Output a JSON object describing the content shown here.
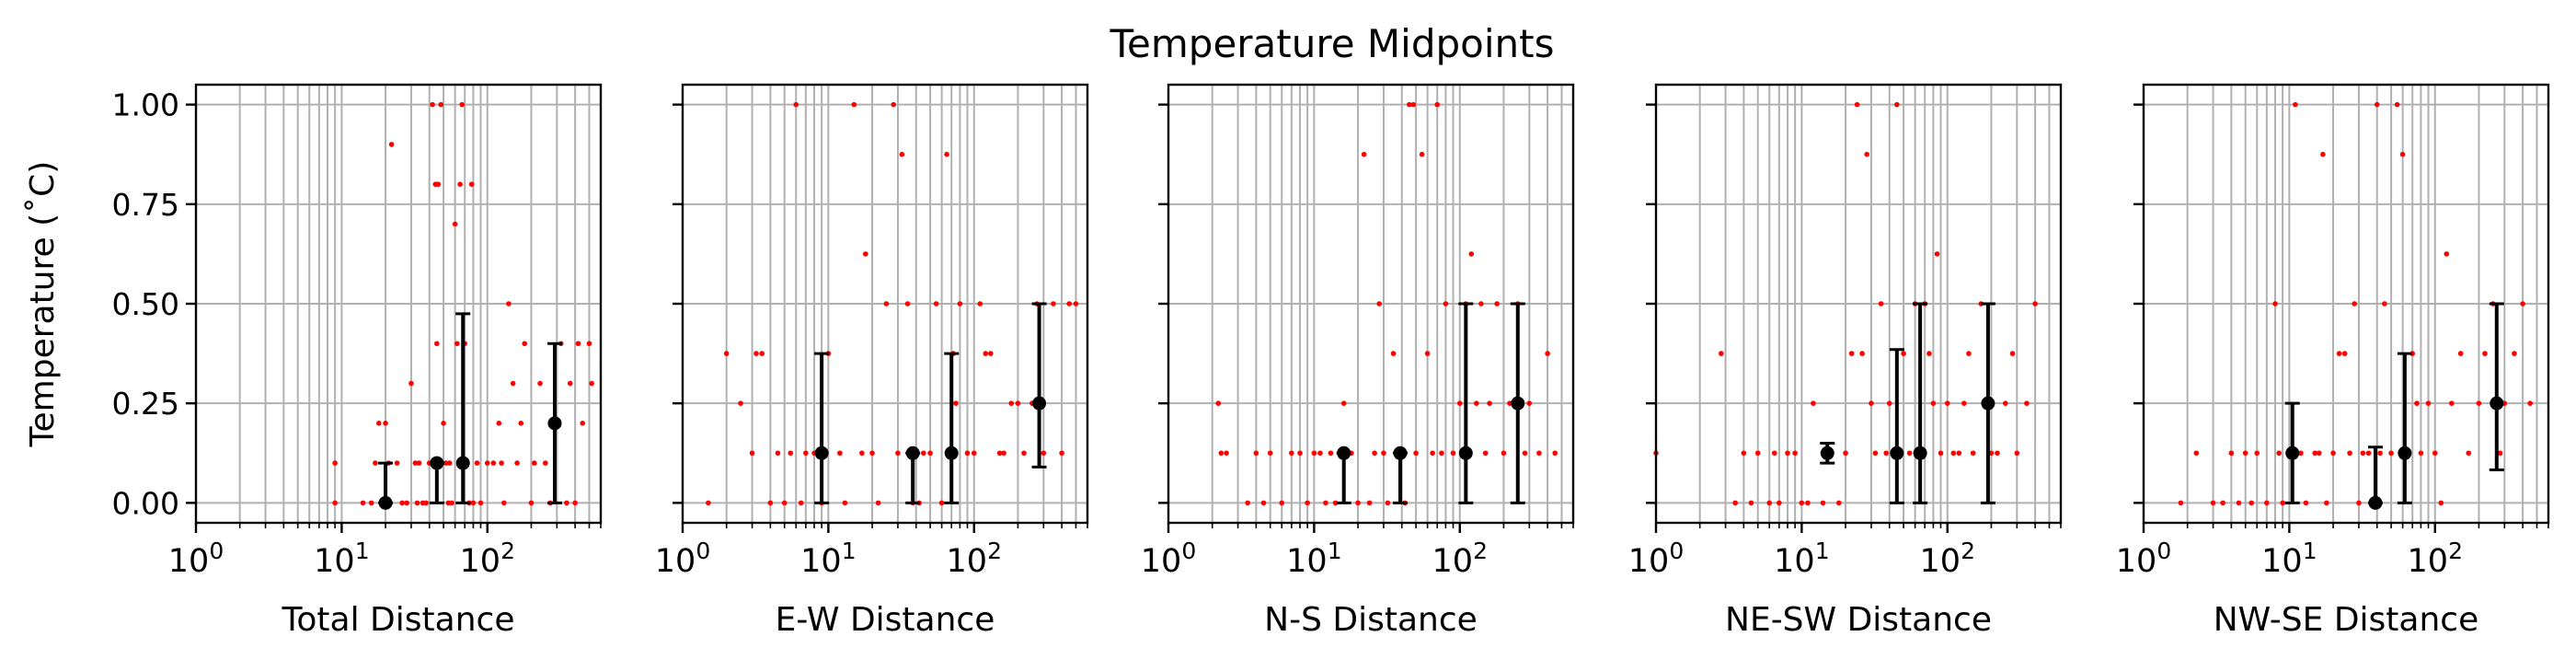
{
  "figure": {
    "title": "Temperature Midpoints",
    "ylabel": "Temperature (˚C)"
  },
  "colors": {
    "scatter": "#ff0000",
    "errorbar": "#000000",
    "grid": "#b0b0b0",
    "axes": "#000000"
  },
  "chart_data": [
    {
      "type": "scatter",
      "xlabel": "Total Distance",
      "xscale": "log",
      "xlim": [
        1,
        600
      ],
      "ylim": [
        -0.05,
        1.05
      ],
      "xticks": [
        "10^0",
        "10^1",
        "10^2"
      ],
      "yticks": [
        "0.00",
        "0.25",
        "0.50",
        "0.75",
        "1.00"
      ],
      "grid": "both, major and minor on x",
      "points": {
        "x": [
          9,
          9,
          14,
          16,
          17,
          18,
          19,
          20,
          20,
          21,
          22,
          24,
          26,
          28,
          30,
          32,
          33,
          34,
          36,
          38,
          40,
          42,
          44,
          45,
          46,
          47,
          48,
          49,
          50,
          52,
          54,
          55,
          57,
          60,
          62,
          65,
          67,
          70,
          72,
          75,
          78,
          80,
          85,
          90,
          100,
          110,
          120,
          125,
          130,
          140,
          150,
          160,
          170,
          180,
          200,
          210,
          230,
          250,
          270,
          280,
          300,
          320,
          350,
          370,
          400,
          420,
          450,
          500,
          520
        ],
        "y": [
          0.0,
          0.1,
          0.0,
          0.0,
          0.1,
          0.2,
          0.0,
          0.2,
          0.0,
          0.1,
          0.9,
          0.1,
          0.0,
          0.0,
          0.3,
          0.1,
          0.0,
          0.1,
          0.0,
          0.0,
          0.1,
          1.0,
          0.8,
          0.4,
          0.8,
          0.1,
          1.0,
          0.1,
          0.2,
          0.1,
          0.0,
          0.1,
          0.0,
          0.7,
          0.4,
          0.8,
          1.0,
          0.4,
          0.1,
          0.0,
          0.8,
          0.0,
          0.1,
          0.0,
          0.1,
          0.1,
          0.2,
          0.1,
          0.0,
          0.5,
          0.3,
          0.1,
          0.2,
          0.4,
          0.0,
          0.1,
          0.3,
          0.1,
          0.0,
          0.2,
          0.2,
          0.4,
          0.0,
          0.3,
          0.0,
          0.4,
          0.2,
          0.4,
          0.3
        ]
      },
      "errorbars": [
        {
          "x": 20,
          "y": 0.0,
          "low": 0.0,
          "high": 0.1
        },
        {
          "x": 45,
          "y": 0.1,
          "low": 0.0,
          "high": 0.1
        },
        {
          "x": 68,
          "y": 0.1,
          "low": 0.0,
          "high": 0.475
        },
        {
          "x": 290,
          "y": 0.2,
          "low": 0.0,
          "high": 0.4
        }
      ]
    },
    {
      "type": "scatter",
      "xlabel": "E-W Distance",
      "xscale": "log",
      "xlim": [
        1,
        600
      ],
      "ylim": [
        -0.05,
        1.05
      ],
      "xticks": [
        "10^0",
        "10^1",
        "10^2"
      ],
      "yticks": [
        "0.00",
        "0.25",
        "0.50",
        "0.75",
        "1.00"
      ],
      "grid": "both, major and minor on x",
      "points": {
        "x": [
          1.5,
          2,
          2.5,
          3,
          3.2,
          3.5,
          4,
          4.5,
          5,
          5.5,
          6,
          6.5,
          7,
          8,
          9,
          10,
          12,
          13,
          15,
          17,
          18,
          20,
          22,
          25,
          28,
          30,
          32,
          35,
          38,
          40,
          42,
          45,
          50,
          55,
          60,
          65,
          70,
          72,
          75,
          80,
          90,
          100,
          110,
          120,
          130,
          150,
          160,
          180,
          200,
          220,
          250,
          270,
          300,
          350,
          400,
          450,
          500
        ],
        "y": [
          0.0,
          0.375,
          0.25,
          0.125,
          0.375,
          0.375,
          0.0,
          0.125,
          0.0,
          0.125,
          1.0,
          0.0,
          0.125,
          0.125,
          0.0,
          0.375,
          0.125,
          0.0,
          1.0,
          0.125,
          0.625,
          0.125,
          0.0,
          0.5,
          1.0,
          0.125,
          0.875,
          0.5,
          0.0,
          0.125,
          0.0,
          0.125,
          0.125,
          0.5,
          0.0,
          0.875,
          0.125,
          0.375,
          0.25,
          0.5,
          0.125,
          0.125,
          0.5,
          0.375,
          0.375,
          0.125,
          0.125,
          0.25,
          0.25,
          0.125,
          0.25,
          0.5,
          0.125,
          0.5,
          0.125,
          0.5,
          0.5
        ]
      },
      "errorbars": [
        {
          "x": 9,
          "y": 0.125,
          "low": 0.0,
          "high": 0.375
        },
        {
          "x": 38,
          "y": 0.125,
          "low": 0.0,
          "high": 0.125
        },
        {
          "x": 70,
          "y": 0.125,
          "low": 0.0,
          "high": 0.375
        },
        {
          "x": 280,
          "y": 0.25,
          "low": 0.09,
          "high": 0.5
        }
      ]
    },
    {
      "type": "scatter",
      "xlabel": "N-S Distance",
      "xscale": "log",
      "xlim": [
        1,
        600
      ],
      "ylim": [
        -0.05,
        1.05
      ],
      "xticks": [
        "10^0",
        "10^1",
        "10^2"
      ],
      "yticks": [
        "0.00",
        "0.25",
        "0.50",
        "0.75",
        "1.00"
      ],
      "grid": "both, major and minor on x",
      "points": {
        "x": [
          2.2,
          2.3,
          2.5,
          3.5,
          4,
          4.5,
          5,
          6,
          7,
          8,
          9,
          10,
          11,
          12,
          13,
          14,
          15,
          16,
          18,
          20,
          22,
          24,
          26,
          28,
          30,
          32,
          35,
          38,
          40,
          42,
          45,
          48,
          50,
          55,
          60,
          65,
          70,
          75,
          80,
          90,
          100,
          110,
          120,
          130,
          140,
          150,
          160,
          180,
          200,
          220,
          250,
          280,
          300,
          350,
          400,
          450
        ],
        "y": [
          0.25,
          0.125,
          0.125,
          0.0,
          0.125,
          0.0,
          0.125,
          0.0,
          0.125,
          0.125,
          0.0,
          0.125,
          0.125,
          0.0,
          0.125,
          0.0,
          0.125,
          0.25,
          0.125,
          0.0,
          0.875,
          0.0,
          0.125,
          0.5,
          0.125,
          0.0,
          0.375,
          0.125,
          0.125,
          0.0,
          1.0,
          1.0,
          0.125,
          0.875,
          0.375,
          0.125,
          1.0,
          0.125,
          0.5,
          0.125,
          0.25,
          0.5,
          0.625,
          0.25,
          0.5,
          0.125,
          0.25,
          0.5,
          0.125,
          0.25,
          0.5,
          0.125,
          0.25,
          0.125,
          0.375,
          0.125
        ]
      },
      "errorbars": [
        {
          "x": 16,
          "y": 0.125,
          "low": 0.0,
          "high": 0.125
        },
        {
          "x": 39,
          "y": 0.125,
          "low": 0.0,
          "high": 0.125
        },
        {
          "x": 110,
          "y": 0.125,
          "low": 0.0,
          "high": 0.5
        },
        {
          "x": 250,
          "y": 0.25,
          "low": 0.0,
          "high": 0.5
        }
      ]
    },
    {
      "type": "scatter",
      "xlabel": "NE-SW Distance",
      "xscale": "log",
      "xlim": [
        1,
        600
      ],
      "ylim": [
        -0.05,
        1.05
      ],
      "xticks": [
        "10^0",
        "10^1",
        "10^2"
      ],
      "yticks": [
        "0.00",
        "0.25",
        "0.50",
        "0.75",
        "1.00"
      ],
      "grid": "both, major and minor on x",
      "points": {
        "x": [
          1,
          2.8,
          3.5,
          4,
          4.5,
          5,
          6,
          6.5,
          7,
          8,
          9,
          10,
          11,
          12,
          14,
          15,
          16,
          18,
          20,
          22,
          24,
          26,
          28,
          30,
          32,
          35,
          38,
          40,
          45,
          50,
          55,
          60,
          65,
          70,
          75,
          80,
          85,
          90,
          100,
          110,
          120,
          130,
          140,
          150,
          170,
          180,
          200,
          220,
          250,
          280,
          300,
          350,
          400
        ],
        "y": [
          0.125,
          0.375,
          0.0,
          0.125,
          0.0,
          0.125,
          0.0,
          0.125,
          0.0,
          0.125,
          0.125,
          0.0,
          0.0,
          0.25,
          0.0,
          0.125,
          0.125,
          0.0,
          0.125,
          0.375,
          1.0,
          0.375,
          0.875,
          0.25,
          0.125,
          0.5,
          0.125,
          0.25,
          1.0,
          0.375,
          0.125,
          0.5,
          0.125,
          0.5,
          0.375,
          0.25,
          0.625,
          0.125,
          0.25,
          0.125,
          0.125,
          0.25,
          0.375,
          0.125,
          0.5,
          0.25,
          0.125,
          0.125,
          0.25,
          0.375,
          0.125,
          0.25,
          0.5
        ]
      },
      "errorbars": [
        {
          "x": 15,
          "y": 0.125,
          "low": 0.1,
          "high": 0.15
        },
        {
          "x": 45,
          "y": 0.125,
          "low": 0.0,
          "high": 0.385
        },
        {
          "x": 65,
          "y": 0.125,
          "low": 0.0,
          "high": 0.5
        },
        {
          "x": 190,
          "y": 0.25,
          "low": 0.0,
          "high": 0.5
        }
      ]
    },
    {
      "type": "scatter",
      "xlabel": "NW-SE Distance",
      "xscale": "log",
      "xlim": [
        1,
        600
      ],
      "ylim": [
        -0.05,
        1.05
      ],
      "xticks": [
        "10^0",
        "10^1",
        "10^2"
      ],
      "yticks": [
        "0.00",
        "0.25",
        "0.50",
        "0.75",
        "1.00"
      ],
      "grid": "both, major and minor on x",
      "points": {
        "x": [
          1.8,
          2.3,
          3,
          3.5,
          4,
          4.5,
          5,
          5.5,
          6,
          7,
          8,
          8.5,
          9,
          10,
          11,
          12,
          13,
          15,
          16,
          17,
          18,
          20,
          22,
          24,
          26,
          28,
          30,
          32,
          35,
          38,
          40,
          42,
          45,
          50,
          55,
          60,
          65,
          70,
          75,
          80,
          90,
          100,
          110,
          120,
          130,
          150,
          170,
          200,
          220,
          250,
          280,
          300,
          350,
          400,
          450
        ],
        "y": [
          0.0,
          0.125,
          0.0,
          0.0,
          0.125,
          0.0,
          0.125,
          0.0,
          0.125,
          0.0,
          0.5,
          0.125,
          0.0,
          0.125,
          1.0,
          0.125,
          0.0,
          0.125,
          0.125,
          0.875,
          0.0,
          0.125,
          0.375,
          0.375,
          0.125,
          0.5,
          0.0,
          0.125,
          0.125,
          0.0,
          1.0,
          0.125,
          0.5,
          0.125,
          1.0,
          0.875,
          0.125,
          0.375,
          0.25,
          0.125,
          0.25,
          0.125,
          0.0,
          0.625,
          0.25,
          0.375,
          0.125,
          0.25,
          0.375,
          0.5,
          0.125,
          0.25,
          0.375,
          0.5,
          0.25
        ]
      },
      "errorbars": [
        {
          "x": 10.5,
          "y": 0.125,
          "low": 0.0,
          "high": 0.25
        },
        {
          "x": 39,
          "y": 0.0,
          "low": 0.0,
          "high": 0.14
        },
        {
          "x": 62,
          "y": 0.125,
          "low": 0.0,
          "high": 0.375
        },
        {
          "x": 265,
          "y": 0.25,
          "low": 0.083,
          "high": 0.5
        }
      ]
    }
  ]
}
